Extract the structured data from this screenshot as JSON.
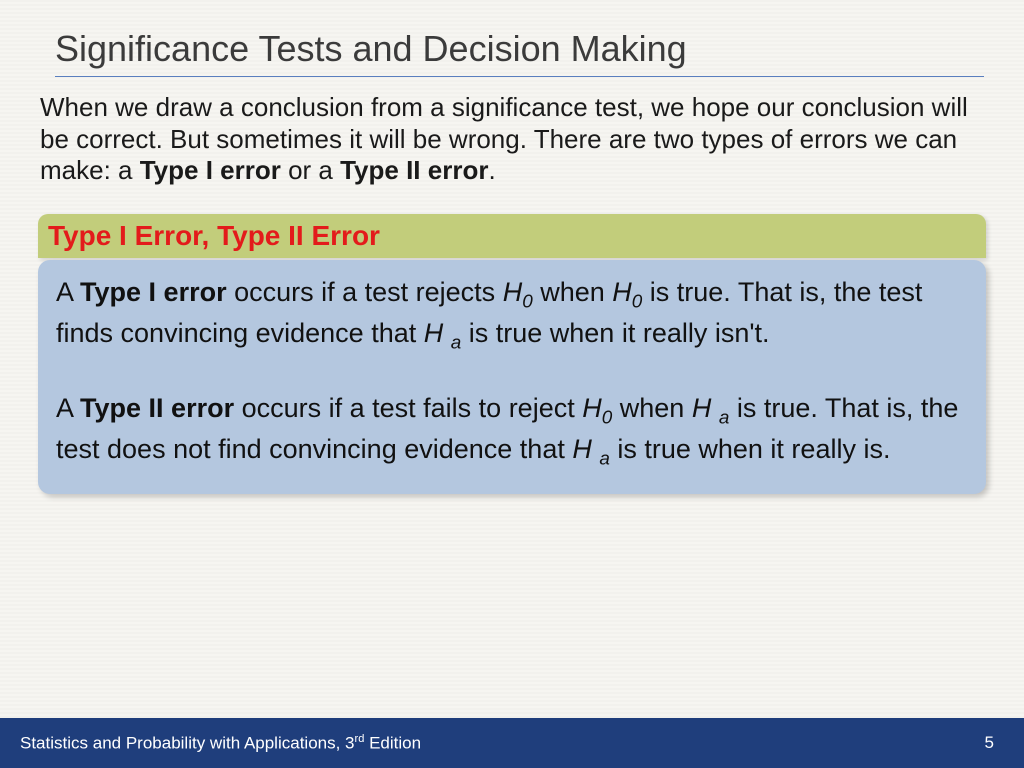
{
  "colors": {
    "background": "#f5f4f0",
    "title_text": "#3b3b3b",
    "title_rule": "#5a7fbf",
    "body_text": "#1a1a1a",
    "green_bar_bg": "#c2cd7b",
    "green_bar_text": "#e31b1b",
    "blue_box_bg": "#b4c7df",
    "footer_bg": "#1f3e7c",
    "footer_text": "#ffffff"
  },
  "typography": {
    "title_fontsize": 36,
    "intro_fontsize": 26,
    "greenbar_fontsize": 28,
    "bluebox_fontsize": 27,
    "footer_fontsize": 17,
    "font_family": "Arial"
  },
  "title": "Significance Tests and Decision Making",
  "intro": {
    "pre": "When we draw a conclusion from a significance test, we hope our conclusion will be correct. But sometimes it will be wrong. There are two types of errors we can make: a ",
    "bold1": "Type I error",
    "mid": " or a ",
    "bold2": "Type II error",
    "post": "."
  },
  "green_bar": "Type I Error, Type II Error",
  "blue_box": {
    "p1": {
      "t1": "A ",
      "b1": "Type I error",
      "t2": " occurs if a test rejects ",
      "i1": "H",
      "s1": "0",
      "t3": " when ",
      "i2": "H",
      "s2": "0",
      "t4": " is true. That is, the test  finds convincing evidence that ",
      "i3": "H ",
      "s3": "a",
      "t5": " is true when it really isn't."
    },
    "p2": {
      "t1": "A ",
      "b1": "Type II error",
      "t2": " occurs if a test fails to reject ",
      "i1": "H",
      "s1": "0",
      "t3": " when ",
      "i2": "H ",
      "s2": "a",
      "t4": " is true. That is, the test does not find convincing evidence that ",
      "i3": "H ",
      "s3": "a",
      "t5": " is true when it really is."
    }
  },
  "footer": {
    "left_pre": "Statistics and Probability with Applications, 3",
    "left_sup": "rd",
    "left_post": " Edition",
    "page": "5"
  }
}
